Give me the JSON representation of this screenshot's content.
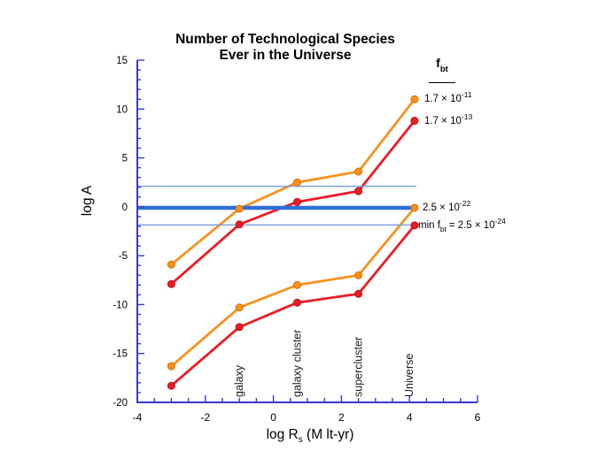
{
  "page": {
    "background": "#ffffff"
  },
  "chart_data": {
    "type": "line",
    "title_line1": "Number of Technological Species",
    "title_line2": "Ever in the Universe",
    "ylabel": "log A",
    "xlabel_pre": "log R",
    "xlabel_sub": "s",
    "xlabel_post": " (M lt-yr)",
    "xlim": [
      -4,
      6
    ],
    "ylim": [
      -20,
      15
    ],
    "x_major_ticks": [
      -4,
      -2,
      0,
      2,
      4,
      6
    ],
    "x_minor_step": 0.5,
    "y_major_ticks": [
      15,
      10,
      5,
      0,
      -5,
      -10,
      -15,
      -20
    ],
    "y_minor_step": 1,
    "axis_color": "#3a3ac8",
    "grid": false,
    "x": [
      -3,
      -1,
      0.7,
      2.5,
      4.15
    ],
    "series": [
      {
        "name": "f_bt = 1.7e-11",
        "color": "#f6921e",
        "edge": "#d96f00",
        "values": [
          -5.9,
          -0.2,
          2.5,
          3.6,
          11.0
        ]
      },
      {
        "name": "f_bt = 1.7e-13",
        "color": "#ec1c24",
        "edge": "#b5121a",
        "values": [
          -7.9,
          -1.8,
          0.5,
          1.6,
          8.8
        ]
      },
      {
        "name": "f_bt = 2.5e-22",
        "color": "#f6921e",
        "edge": "#d96f00",
        "values": [
          -16.3,
          -10.3,
          -8.0,
          -7.0,
          -0.1
        ]
      },
      {
        "name": "min f_bt = 2.5e-24",
        "color": "#ec1c24",
        "edge": "#b5121a",
        "values": [
          -18.3,
          -12.3,
          -9.8,
          -8.9,
          -1.9
        ]
      }
    ],
    "hlines": [
      {
        "y": 2.1,
        "color": "#7fa0dc",
        "width": 1.5,
        "x_start": -4,
        "x_end": 4.2
      },
      {
        "y": -0.1,
        "color": "#2f6fd6",
        "width": 4.5,
        "x_start": -4,
        "x_end": 4.15
      },
      {
        "y": -1.85,
        "color": "#7fa0dc",
        "width": 1.5,
        "x_start": -4,
        "x_end": 4.1
      }
    ],
    "category_labels": [
      {
        "label": "galaxy",
        "x": -1
      },
      {
        "label": "galaxy cluster",
        "x": 0.7
      },
      {
        "label": "supercluster",
        "x": 2.5
      },
      {
        "label": "Universe",
        "x": 4.0
      }
    ]
  },
  "legend": {
    "header": {
      "base": "f",
      "sub": "bt"
    },
    "entries": [
      {
        "base": "1.7 × 10",
        "exp": "-11"
      },
      {
        "base": "1.7 × 10",
        "exp": "-13"
      },
      {
        "base": "2.5 × 10",
        "exp": "-22"
      },
      {
        "pre": "min f",
        "sub": "bt",
        "mid": " = 2.5 × 10",
        "exp": "-24"
      }
    ]
  }
}
